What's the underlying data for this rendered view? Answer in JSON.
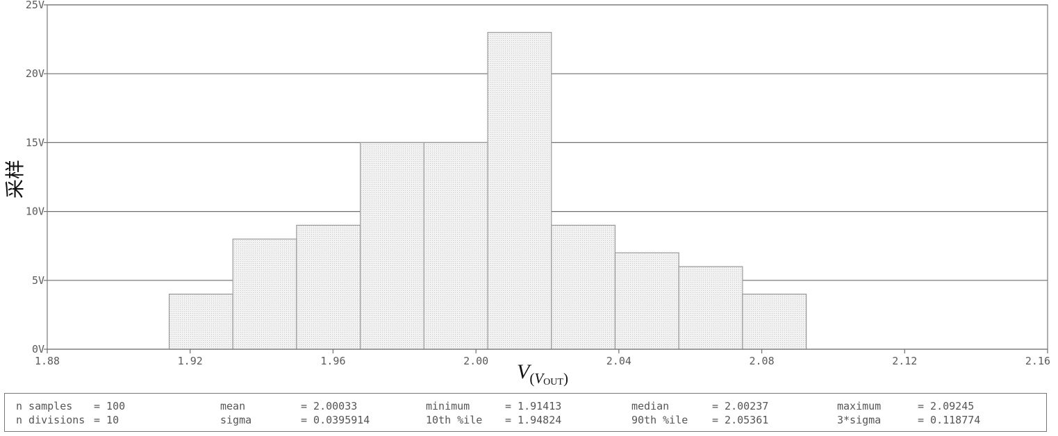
{
  "chart_data": {
    "type": "bar",
    "subtype": "histogram",
    "bins": [
      {
        "x0": 1.91413,
        "x1": 1.93196,
        "count": 4
      },
      {
        "x0": 1.93196,
        "x1": 1.94979,
        "count": 8
      },
      {
        "x0": 1.94979,
        "x1": 1.96763,
        "count": 9
      },
      {
        "x0": 1.96763,
        "x1": 1.98546,
        "count": 15
      },
      {
        "x0": 1.98546,
        "x1": 2.00329,
        "count": 15
      },
      {
        "x0": 2.00329,
        "x1": 2.02112,
        "count": 23
      },
      {
        "x0": 2.02112,
        "x1": 2.03895,
        "count": 9
      },
      {
        "x0": 2.03895,
        "x1": 2.05679,
        "count": 7
      },
      {
        "x0": 2.05679,
        "x1": 2.07462,
        "count": 6
      },
      {
        "x0": 2.07462,
        "x1": 2.09245,
        "count": 4
      }
    ],
    "xlim": [
      1.88,
      2.16
    ],
    "ylim": [
      0,
      25
    ],
    "xticks": [
      "1.88",
      "1.92",
      "1.96",
      "2.00",
      "2.04",
      "2.08",
      "2.12",
      "2.16"
    ],
    "xtick_values": [
      1.88,
      1.92,
      1.96,
      2.0,
      2.04,
      2.08,
      2.12,
      2.16
    ],
    "yticks": [
      "0V",
      "5V",
      "10V",
      "15V",
      "20V",
      "25V"
    ],
    "ytick_values": [
      0,
      5,
      10,
      15,
      20,
      25
    ],
    "ylabel": "采样",
    "xlabel": {
      "main": "V",
      "sub_open": "(",
      "sub_var": "V",
      "sub_sub": "OUT",
      "sub_close": ")"
    },
    "grid": "horizontal",
    "bar_fill": "#eeeeee",
    "bar_stroke": "#9a9a9a"
  },
  "stats": [
    {
      "label": "n samples",
      "value": "= 100"
    },
    {
      "label": "n divisions",
      "value": "= 10"
    },
    {
      "label": "mean",
      "value": "= 2.00033"
    },
    {
      "label": "sigma",
      "value": "= 0.0395914"
    },
    {
      "label": "minimum",
      "value": "= 1.91413"
    },
    {
      "label": "10th %ile",
      "value": "= 1.94824"
    },
    {
      "label": "median",
      "value": "= 2.00237"
    },
    {
      "label": "90th %ile",
      "value": "= 2.05361"
    },
    {
      "label": "maximum",
      "value": "= 2.09245"
    },
    {
      "label": "3*sigma",
      "value": "= 0.118774"
    }
  ]
}
